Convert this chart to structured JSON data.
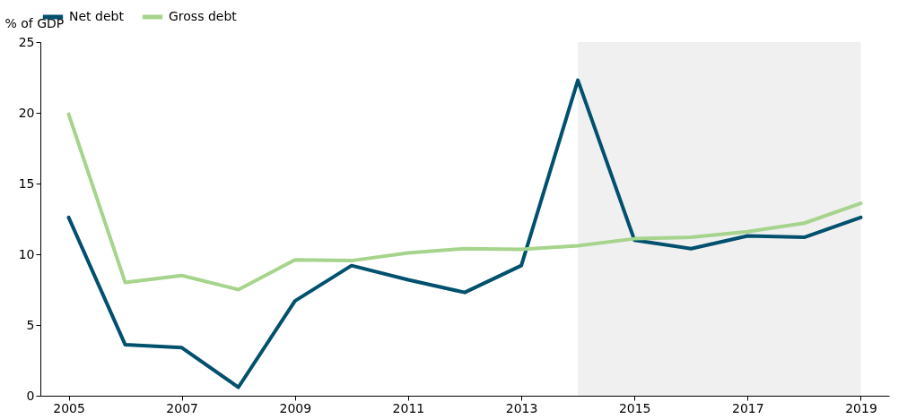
{
  "chart_data": {
    "type": "line",
    "ylabel": "% of GDP",
    "x": [
      2005,
      2006,
      2007,
      2008,
      2009,
      2010,
      2011,
      2012,
      2013,
      2014,
      2015,
      2016,
      2017,
      2018,
      2019
    ],
    "series": [
      {
        "name": "Net debt",
        "color": "#00506e",
        "values": [
          12.6,
          3.6,
          3.4,
          0.6,
          6.7,
          9.2,
          8.2,
          7.3,
          9.2,
          22.3,
          11.0,
          10.4,
          11.3,
          11.2,
          12.6
        ]
      },
      {
        "name": "Gross debt",
        "color": "#a6d48c",
        "values": [
          19.9,
          8.0,
          8.5,
          7.5,
          9.6,
          9.55,
          10.1,
          10.4,
          10.35,
          10.6,
          11.1,
          11.2,
          11.6,
          12.2,
          13.6
        ]
      }
    ],
    "xlim": [
      2004.5,
      2019.5
    ],
    "xticks": [
      2005,
      2007,
      2009,
      2011,
      2013,
      2015,
      2017,
      2019
    ],
    "ylim": [
      0,
      25
    ],
    "yticks": [
      0,
      5,
      10,
      15,
      20,
      25
    ],
    "bands": [
      {
        "axis": "x",
        "from": 2014,
        "to": 2019,
        "color": "#f0f0f0"
      }
    ],
    "grid": false,
    "legend": "top",
    "marker": "none",
    "line_style": "solid"
  }
}
